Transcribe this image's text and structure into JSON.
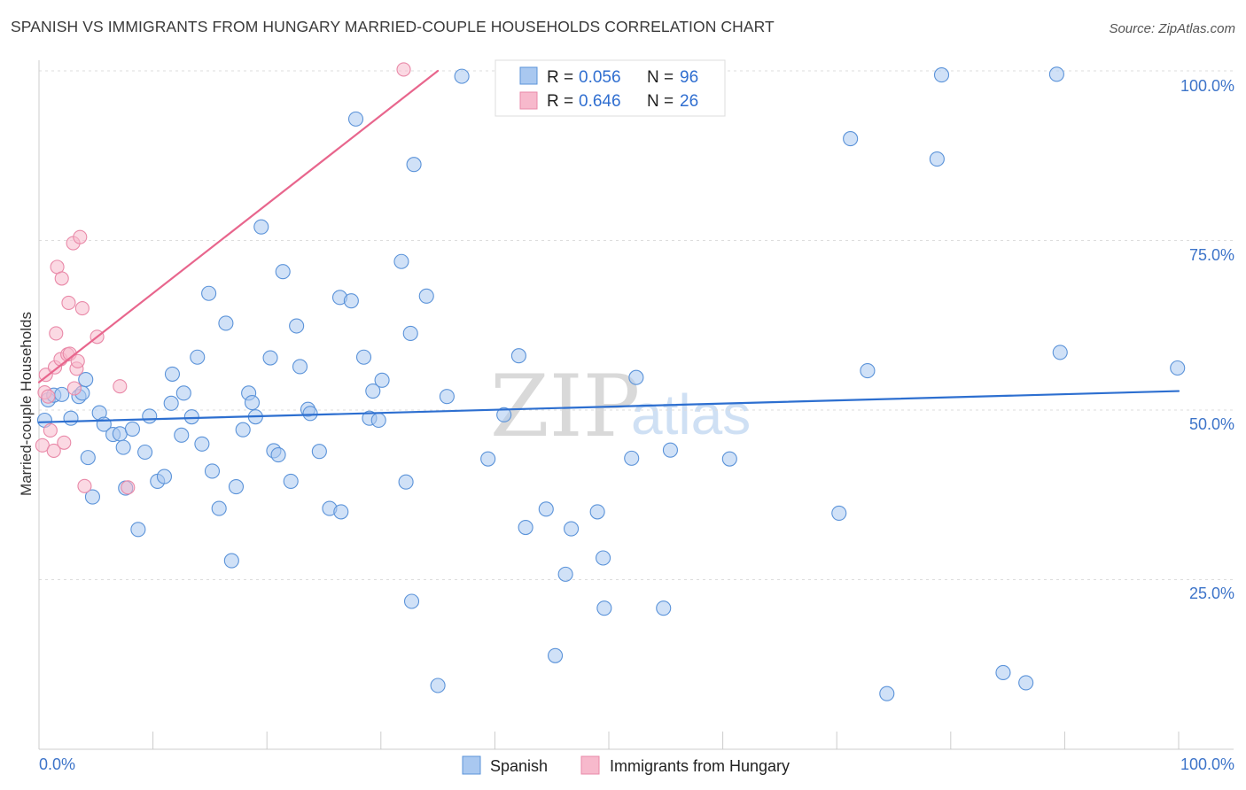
{
  "header": {
    "title": "SPANISH VS IMMIGRANTS FROM HUNGARY MARRIED-COUPLE HOUSEHOLDS CORRELATION CHART",
    "source": "Source: ZipAtlas.com"
  },
  "watermark": {
    "zip": "ZIP",
    "atlas": "atlas"
  },
  "colors": {
    "spanish_fill": "#a9c8f0",
    "spanish_stroke": "#5b93d9",
    "spanish_line": "#2d6fd0",
    "hungary_fill": "#f7b9cc",
    "hungary_stroke": "#e989a8",
    "hungary_line": "#e8668d",
    "tick_text": "#3d74c9"
  },
  "legend": {
    "row1": {
      "r_label": "R = ",
      "r_value": "0.056",
      "n_label": "N = ",
      "n_value": "96"
    },
    "row2": {
      "r_label": "R = ",
      "r_value": "0.646",
      "n_label": "N = ",
      "n_value": "26"
    }
  },
  "bottom_legend": {
    "series1": "Spanish",
    "series2": "Immigrants from Hungary"
  },
  "chart_data": {
    "type": "scatter",
    "title": "SPANISH VS IMMIGRANTS FROM HUNGARY MARRIED-COUPLE HOUSEHOLDS CORRELATION CHART",
    "xlabel": "",
    "ylabel": "Married-couple Households",
    "xlim": [
      0,
      100
    ],
    "ylim": [
      0,
      100
    ],
    "x_tick_labels": [
      "0.0%",
      "100.0%"
    ],
    "y_tick_labels": [
      "25.0%",
      "50.0%",
      "75.0%",
      "100.0%"
    ],
    "y_ticks": [
      25,
      50,
      75,
      100
    ],
    "grid": true,
    "legend_position": "top-center",
    "series": [
      {
        "name": "Spanish",
        "R": 0.056,
        "N": 96,
        "trend": {
          "x": [
            0,
            100
          ],
          "y": [
            48.2,
            52.8
          ]
        },
        "points": [
          [
            0.5,
            48.5
          ],
          [
            0.8,
            51.5
          ],
          [
            1.3,
            52.2
          ],
          [
            2.0,
            52.3
          ],
          [
            2.8,
            48.8
          ],
          [
            3.5,
            52.0
          ],
          [
            3.8,
            52.5
          ],
          [
            4.1,
            54.5
          ],
          [
            4.3,
            43.0
          ],
          [
            4.7,
            37.2
          ],
          [
            5.3,
            49.6
          ],
          [
            5.7,
            47.9
          ],
          [
            6.5,
            46.4
          ],
          [
            7.1,
            46.5
          ],
          [
            7.4,
            44.5
          ],
          [
            7.6,
            38.5
          ],
          [
            8.2,
            47.2
          ],
          [
            8.7,
            32.4
          ],
          [
            9.3,
            43.8
          ],
          [
            9.7,
            49.1
          ],
          [
            10.4,
            39.5
          ],
          [
            11.0,
            40.2
          ],
          [
            11.6,
            51.0
          ],
          [
            11.7,
            55.3
          ],
          [
            12.5,
            46.3
          ],
          [
            12.7,
            52.5
          ],
          [
            13.4,
            49.0
          ],
          [
            13.9,
            57.8
          ],
          [
            14.3,
            45.0
          ],
          [
            14.9,
            67.2
          ],
          [
            15.2,
            41.0
          ],
          [
            15.8,
            35.5
          ],
          [
            16.4,
            62.8
          ],
          [
            16.9,
            27.8
          ],
          [
            17.3,
            38.7
          ],
          [
            17.9,
            47.1
          ],
          [
            18.4,
            52.5
          ],
          [
            18.7,
            51.1
          ],
          [
            19.0,
            49.0
          ],
          [
            19.5,
            77.0
          ],
          [
            20.3,
            57.7
          ],
          [
            20.6,
            44.0
          ],
          [
            21.0,
            43.4
          ],
          [
            21.4,
            70.4
          ],
          [
            22.1,
            39.5
          ],
          [
            22.6,
            62.4
          ],
          [
            22.9,
            56.4
          ],
          [
            23.6,
            50.1
          ],
          [
            23.8,
            49.5
          ],
          [
            24.6,
            43.9
          ],
          [
            25.5,
            35.5
          ],
          [
            26.4,
            66.6
          ],
          [
            26.5,
            35.0
          ],
          [
            27.4,
            66.1
          ],
          [
            27.8,
            92.9
          ],
          [
            28.5,
            57.8
          ],
          [
            29.0,
            48.8
          ],
          [
            29.3,
            52.8
          ],
          [
            29.8,
            48.5
          ],
          [
            30.1,
            54.4
          ],
          [
            31.8,
            71.9
          ],
          [
            32.2,
            39.4
          ],
          [
            32.6,
            61.3
          ],
          [
            32.9,
            86.2
          ],
          [
            32.7,
            21.8
          ],
          [
            34.0,
            66.8
          ],
          [
            35.0,
            9.4
          ],
          [
            35.8,
            52.0
          ],
          [
            37.1,
            99.2
          ],
          [
            39.4,
            42.8
          ],
          [
            40.8,
            49.3
          ],
          [
            42.1,
            58.0
          ],
          [
            42.7,
            32.7
          ],
          [
            44.5,
            35.4
          ],
          [
            45.3,
            13.8
          ],
          [
            46.2,
            25.8
          ],
          [
            46.7,
            32.5
          ],
          [
            49.0,
            35.0
          ],
          [
            49.5,
            28.2
          ],
          [
            49.6,
            20.8
          ],
          [
            52.0,
            42.9
          ],
          [
            52.4,
            54.8
          ],
          [
            54.8,
            20.8
          ],
          [
            55.4,
            44.1
          ],
          [
            60.6,
            42.8
          ],
          [
            70.2,
            34.8
          ],
          [
            71.2,
            90.0
          ],
          [
            72.7,
            55.8
          ],
          [
            74.4,
            8.2
          ],
          [
            78.8,
            87.0
          ],
          [
            79.2,
            99.4
          ],
          [
            84.6,
            11.3
          ],
          [
            86.6,
            9.8
          ],
          [
            89.3,
            99.5
          ],
          [
            89.6,
            58.5
          ],
          [
            99.9,
            56.2
          ]
        ]
      },
      {
        "name": "Immigrants from Hungary",
        "R": 0.646,
        "N": 26,
        "trend": {
          "x": [
            0,
            35
          ],
          "y": [
            54.1,
            100.0
          ]
        },
        "points": [
          [
            0.3,
            44.8
          ],
          [
            0.5,
            52.6
          ],
          [
            0.6,
            55.2
          ],
          [
            0.8,
            52.0
          ],
          [
            1.0,
            47.0
          ],
          [
            1.3,
            44.0
          ],
          [
            1.4,
            56.3
          ],
          [
            1.5,
            61.3
          ],
          [
            1.6,
            71.1
          ],
          [
            1.9,
            57.5
          ],
          [
            2.0,
            69.4
          ],
          [
            2.2,
            45.2
          ],
          [
            2.5,
            58.2
          ],
          [
            2.6,
            65.8
          ],
          [
            2.7,
            58.3
          ],
          [
            3.0,
            74.6
          ],
          [
            3.1,
            53.2
          ],
          [
            3.3,
            56.1
          ],
          [
            3.4,
            57.2
          ],
          [
            3.6,
            75.5
          ],
          [
            3.8,
            65.0
          ],
          [
            4.0,
            38.8
          ],
          [
            5.1,
            60.8
          ],
          [
            7.1,
            53.5
          ],
          [
            7.8,
            38.6
          ],
          [
            32.0,
            100.2
          ]
        ]
      }
    ]
  }
}
